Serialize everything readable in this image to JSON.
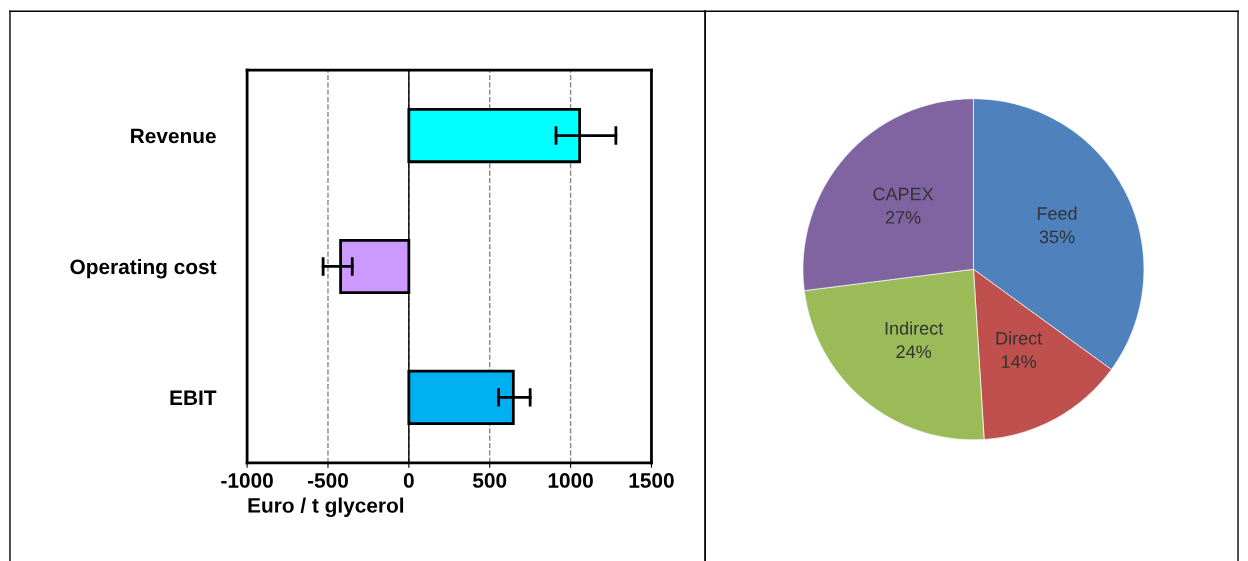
{
  "chart_data": [
    {
      "type": "bar",
      "orientation": "horizontal",
      "categories": [
        "Revenue",
        "Operating cost",
        "EBIT"
      ],
      "values": [
        1056,
        -422,
        646
      ],
      "colors": [
        "#00ffff",
        "#cc99ff",
        "#00b0f0"
      ],
      "errors": [
        [
          910,
          1280
        ],
        [
          -530,
          -350
        ],
        [
          555,
          750
        ]
      ],
      "xlim": [
        -1000,
        1500
      ],
      "xticks": [
        -1000,
        -500,
        0,
        500,
        1000,
        1500
      ],
      "xlabel": "Euro / t glycerol",
      "grid": "x",
      "legend": false
    },
    {
      "type": "pie",
      "categories": [
        "Feed",
        "Direct",
        "Indirect",
        "CAPEX"
      ],
      "values": [
        35,
        14,
        24,
        27
      ],
      "colors": [
        "#4f81bd",
        "#c0504d",
        "#9bbb59",
        "#8064a2"
      ],
      "value_labels": [
        "35%",
        "14%",
        "24%",
        "27%"
      ],
      "legend": false
    }
  ]
}
